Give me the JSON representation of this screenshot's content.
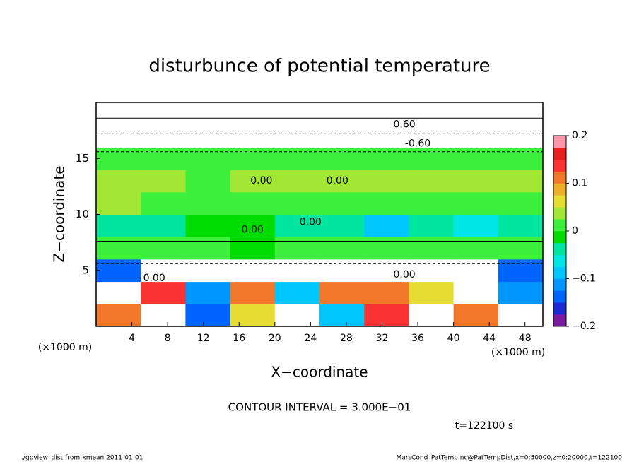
{
  "chart_data": {
    "type": "heatmap",
    "title": "disturbunce of potential temperature",
    "x_label": "X−coordinate",
    "y_label": "Z−coordinate",
    "x_unit": "(×1000 m)",
    "y_unit": "(×1000 m)",
    "xlim": [
      0,
      50
    ],
    "ylim": [
      0,
      20
    ],
    "xticks": [
      4,
      8,
      12,
      16,
      20,
      24,
      28,
      32,
      36,
      40,
      44,
      48
    ],
    "yticks": [
      5,
      10,
      15
    ],
    "x": [
      2.5,
      7.5,
      12.5,
      17.5,
      22.5,
      27.5,
      32.5,
      37.5,
      42.5,
      47.5
    ],
    "y": [
      1,
      3,
      5,
      7,
      9,
      11,
      13,
      15,
      17,
      19
    ],
    "z": [
      [
        0.1,
        -0.3,
        -0.15,
        0.05,
        -0.3,
        -0.1,
        0.15,
        -0.3,
        0.12,
        -0.3
      ],
      [
        -0.3,
        0.15,
        -0.12,
        0.12,
        -0.08,
        0.1,
        0.12,
        0.05,
        -0.3,
        -0.12
      ],
      [
        -0.15,
        -0.3,
        -0.3,
        -0.3,
        -0.3,
        -0.3,
        -0.3,
        -0.3,
        -0.3,
        -0.15
      ],
      [
        0.01,
        0,
        0.02,
        -0.02,
        0,
        0.02,
        0,
        0.01,
        0,
        0.01
      ],
      [
        -0.04,
        -0.03,
        -0.02,
        -0.02,
        -0.03,
        -0.03,
        -0.08,
        -0.04,
        -0.07,
        -0.03
      ],
      [
        0.03,
        0.02,
        0.02,
        0.02,
        0.02,
        0.02,
        0.02,
        0.02,
        0.02,
        0.02
      ],
      [
        0.03,
        0.03,
        0.02,
        0.03,
        0.03,
        0.03,
        0.03,
        0.03,
        0.03,
        0.03
      ],
      [
        0.02,
        0.02,
        0.02,
        0.02,
        0.02,
        0.02,
        0.02,
        0.02,
        0.02,
        0.02
      ],
      [
        -0.3,
        -0.3,
        -0.3,
        -0.3,
        -0.3,
        -0.3,
        -0.3,
        -0.3,
        -0.3,
        -0.3
      ],
      [
        -0.3,
        -0.3,
        -0.3,
        -0.3,
        -0.3,
        -0.3,
        -0.3,
        -0.3,
        -0.3,
        -0.3
      ]
    ],
    "zlim": [
      -0.2,
      0.2
    ],
    "colorscale": [
      "#7a1aa0",
      "#1e28d2",
      "#0064ff",
      "#0096ff",
      "#00c8ff",
      "#00e6e6",
      "#00e6a0",
      "#00dc00",
      "#3cf03c",
      "#a0e632",
      "#e6dc32",
      "#f0af28",
      "#f07828",
      "#fa3232",
      "#e61e1e",
      "#ff96aa"
    ],
    "colorbar_ticks": [
      0.2,
      0.1,
      0,
      {
        "value": -0.1,
        "label": "−0.1"
      },
      {
        "value": -0.2,
        "label": "−0.2"
      }
    ],
    "contour_labels": [
      {
        "text": "0.00",
        "x": 18.5,
        "y": 13
      },
      {
        "text": "0.00",
        "x": 27,
        "y": 13
      },
      {
        "text": "0.00",
        "x": 17.5,
        "y": 8.6
      },
      {
        "text": "0.00",
        "x": 24,
        "y": 9.3
      },
      {
        "text": "0.00",
        "x": 34.5,
        "y": 4.6
      },
      {
        "text": "0.00",
        "x": 6.5,
        "y": 4.3
      },
      {
        "text": "-0.60",
        "x": 36,
        "y": 16.3
      },
      {
        "text": "0.60",
        "x": 34.5,
        "y": 18
      }
    ],
    "contour_interval": "CONTOUR INTERVAL = 3.000E−01",
    "time": "t=122100 s",
    "footer_left": "./gpview_dist-from-xmean  2011-01-01",
    "footer_right": "MarsCond_PatTemp.nc@PatTempDist,x=0:50000,z=0:20000,t=122100"
  }
}
